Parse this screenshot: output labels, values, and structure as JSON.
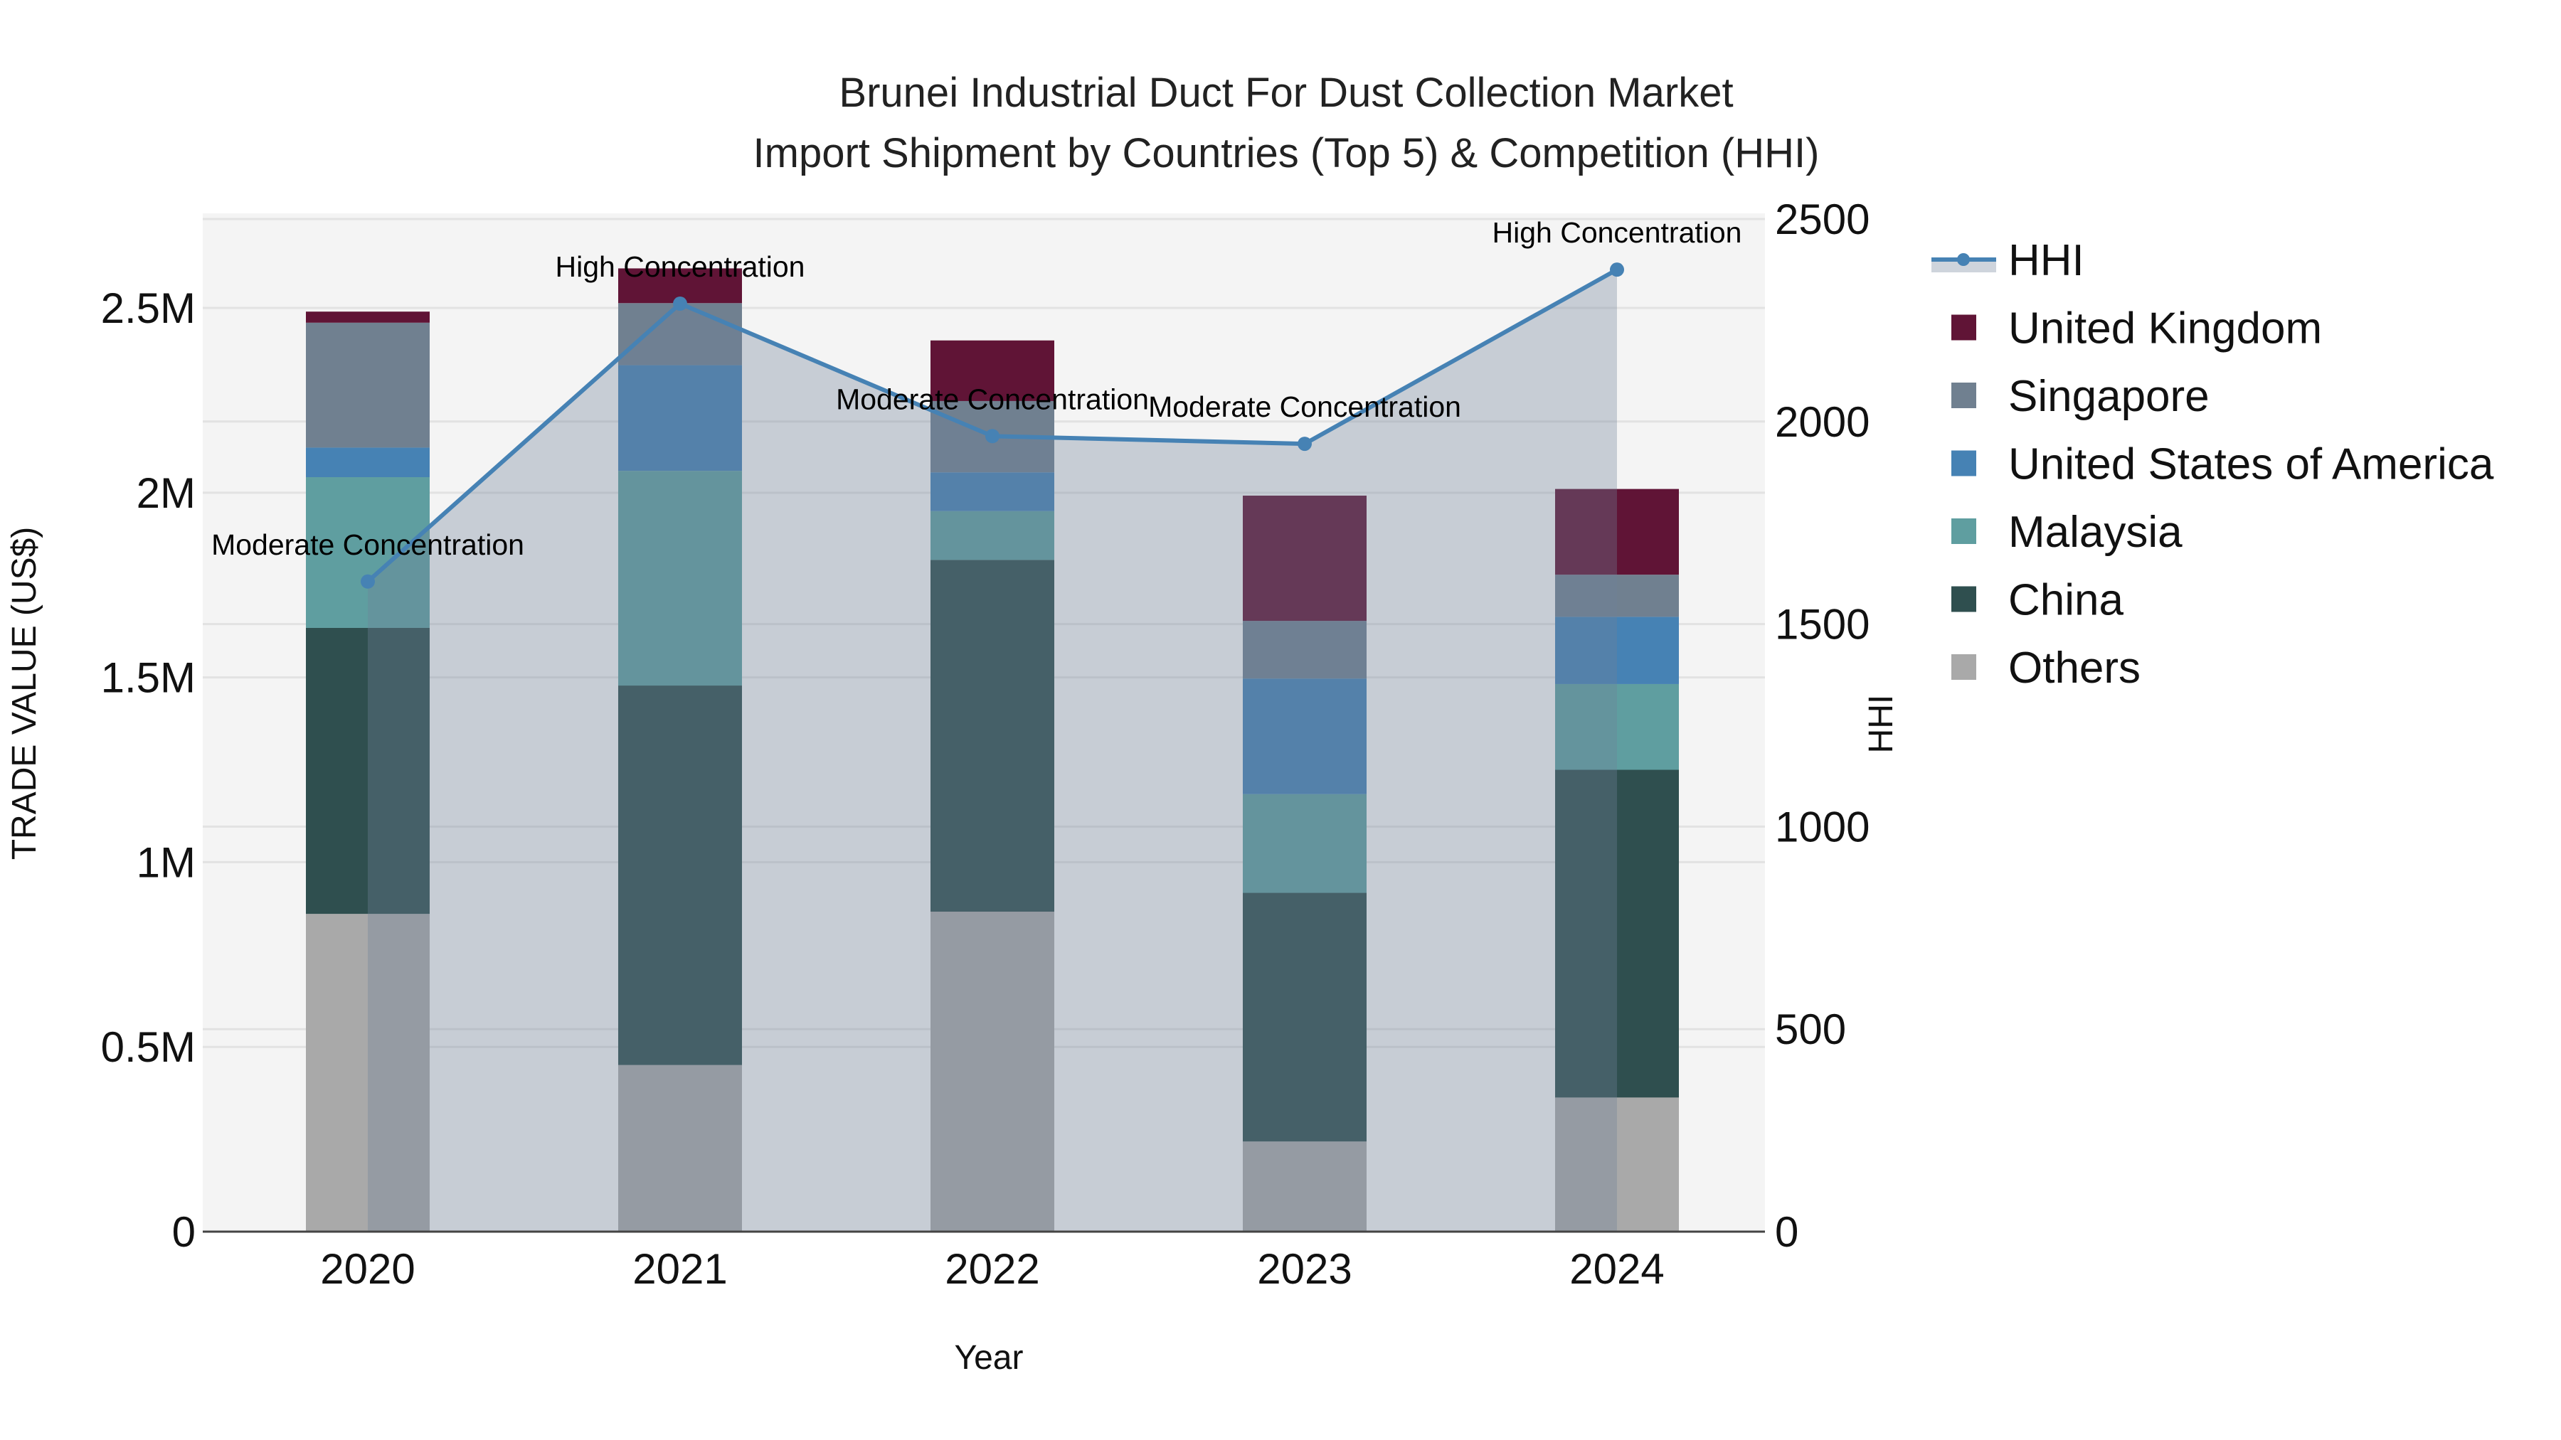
{
  "chart_data": {
    "type": "bar",
    "subtype": "stacked bar + line (dual axis)",
    "title": "Brunei Industrial Duct For Dust Collection Market",
    "subtitle": "Import Shipment by Countries (Top 5) & Competition (HHI)",
    "xlabel": "Year",
    "ylabel": "TRADE VALUE (US$)",
    "y2label": "HHI",
    "categories": [
      "2020",
      "2021",
      "2022",
      "2023",
      "2024"
    ],
    "ylim": [
      0,
      2756000
    ],
    "y2lim": [
      0,
      2514
    ],
    "yticks": [
      0,
      500000,
      1000000,
      1500000,
      2000000,
      2500000
    ],
    "ytick_labels": [
      "0",
      "0.5M",
      "1M",
      "1.5M",
      "2M",
      "2.5M"
    ],
    "y2ticks": [
      0,
      500,
      1000,
      1500,
      2000,
      2500
    ],
    "y2tick_labels": [
      "0",
      "500",
      "1000",
      "1500",
      "2000",
      "2500"
    ],
    "grid": true,
    "legend_position": "right",
    "series": [
      {
        "name": "Others",
        "color": "#A9A9A9",
        "values": [
          860000,
          451000,
          866000,
          244000,
          363000
        ]
      },
      {
        "name": "China",
        "color": "#2F4F4F",
        "values": [
          774000,
          1027000,
          952000,
          673000,
          887000
        ]
      },
      {
        "name": "Malaysia",
        "color": "#5F9EA0",
        "values": [
          408000,
          581000,
          132000,
          267000,
          232000
        ]
      },
      {
        "name": "United States of America",
        "color": "#4682B4",
        "values": [
          80000,
          286000,
          105000,
          313000,
          182000
        ]
      },
      {
        "name": "Singapore",
        "color": "#708090",
        "values": [
          338000,
          168000,
          193000,
          156000,
          114000
        ]
      },
      {
        "name": "United Kingdom",
        "color": "#601436",
        "values": [
          30000,
          94000,
          164000,
          339000,
          232000
        ]
      }
    ],
    "line_series": {
      "name": "HHI",
      "axis": "y2",
      "color": "#4682B4",
      "fill": "rgba(112,128,152,0.34)",
      "values": [
        1605,
        2291,
        1964,
        1945,
        2375
      ],
      "annotations": [
        "Moderate Concentration",
        "High Concentration",
        "Moderate Concentration",
        "Moderate Concentration",
        "High Concentration"
      ]
    }
  },
  "legend": {
    "items": [
      {
        "label": "HHI",
        "kind": "line",
        "color": "#4682B4"
      },
      {
        "label": "United Kingdom",
        "kind": "square",
        "color": "#601436"
      },
      {
        "label": "Singapore",
        "kind": "square",
        "color": "#708090"
      },
      {
        "label": "United States of America",
        "kind": "square",
        "color": "#4682B4"
      },
      {
        "label": "Malaysia",
        "kind": "square",
        "color": "#5F9EA0"
      },
      {
        "label": "China",
        "kind": "square",
        "color": "#2F4F4F"
      },
      {
        "label": "Others",
        "kind": "square",
        "color": "#A9A9A9"
      }
    ]
  },
  "colors": {
    "plot_background": "#F4F4F4",
    "grid": "#E2E2E2",
    "axis_line": "#444444"
  }
}
